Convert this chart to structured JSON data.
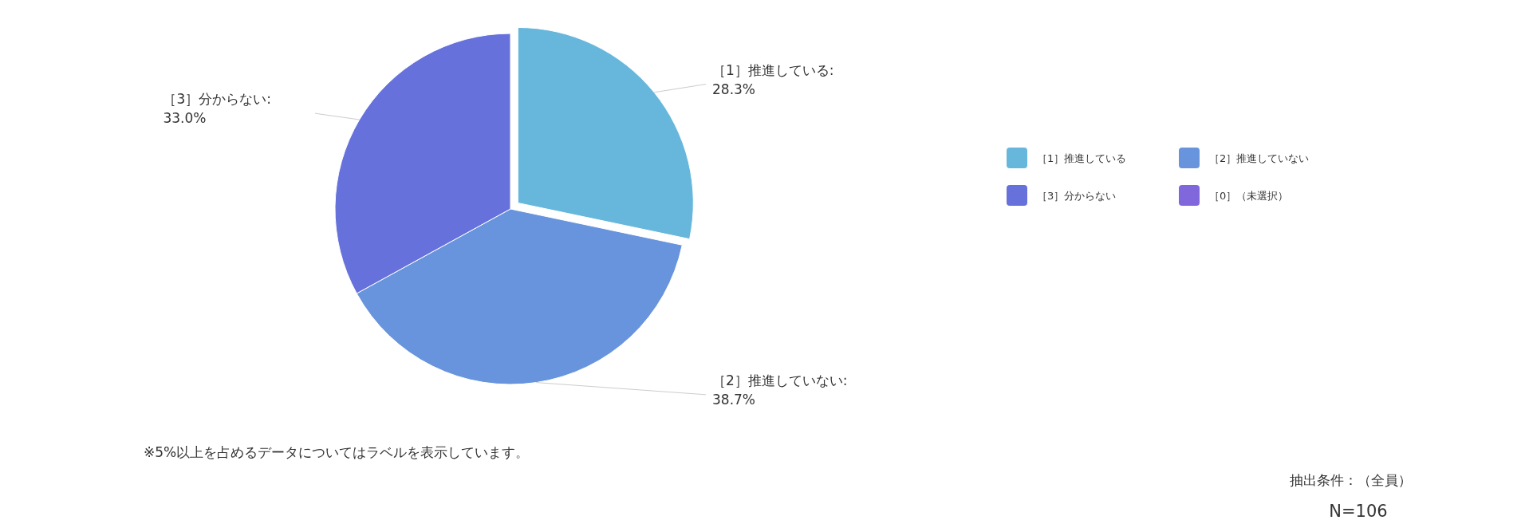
{
  "chart_data": {
    "type": "pie",
    "categories": [
      "［1］推進している",
      "［2］推進していない",
      "［3］分からない",
      "［0］（未選択）"
    ],
    "values": [
      28.3,
      38.7,
      33.0,
      0
    ],
    "value_labels": [
      "［1］推進している:\n28.3%",
      "［2］推進していない:\n38.7%",
      "［3］分からない:\n33.0%",
      null
    ],
    "colors": [
      "#67b7dc",
      "#6794dc",
      "#6771dc",
      "#8067dc"
    ],
    "legend": "right",
    "annotations": [
      "※5%以上を占めるデータについてはラベルを表示しています。",
      "抽出条件：（全員）",
      "N=106"
    ]
  }
}
